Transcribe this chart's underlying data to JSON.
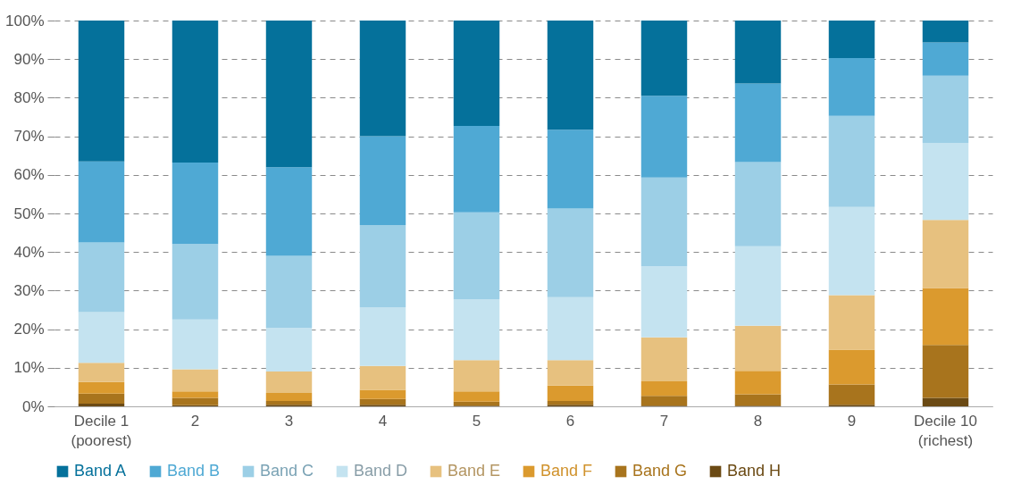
{
  "chart_data": {
    "type": "bar",
    "stacked": true,
    "categories": [
      "Decile 1 (poorest)",
      "2",
      "3",
      "4",
      "5",
      "6",
      "7",
      "8",
      "9",
      "Decile 10 (richest)"
    ],
    "series": [
      {
        "name": "Band H",
        "color": "#6b4a14",
        "values": [
          0.7,
          0.3,
          0.4,
          0.4,
          0.2,
          0.4,
          0.2,
          0.2,
          0.4,
          2.2
        ]
      },
      {
        "name": "Band G",
        "color": "#a8741d",
        "values": [
          2.6,
          1.9,
          1.0,
          1.5,
          1.0,
          1.0,
          2.5,
          2.9,
          5.3,
          13.7
        ]
      },
      {
        "name": "Band F",
        "color": "#db9a2e",
        "values": [
          3.0,
          1.7,
          2.1,
          2.4,
          2.7,
          4.0,
          3.8,
          6.1,
          9.0,
          14.8
        ]
      },
      {
        "name": "Band E",
        "color": "#e7c17f",
        "values": [
          5.0,
          5.7,
          5.5,
          6.2,
          8.1,
          6.6,
          11.4,
          11.7,
          14.1,
          17.6
        ]
      },
      {
        "name": "Band D",
        "color": "#c4e3f0",
        "values": [
          13.1,
          12.9,
          11.3,
          15.2,
          15.8,
          16.3,
          18.4,
          20.6,
          22.9,
          20.0
        ]
      },
      {
        "name": "Band C",
        "color": "#9ccfe6",
        "values": [
          18.1,
          19.6,
          18.7,
          21.3,
          22.5,
          23.0,
          23.0,
          21.8,
          23.6,
          17.4
        ]
      },
      {
        "name": "Band B",
        "color": "#4fa9d4",
        "values": [
          21.0,
          21.1,
          23.0,
          23.0,
          22.4,
          20.4,
          21.2,
          20.4,
          15.0,
          8.6
        ]
      },
      {
        "name": "Band A",
        "color": "#05719b",
        "values": [
          36.5,
          36.8,
          38.0,
          30.0,
          27.3,
          28.3,
          19.5,
          16.3,
          9.7,
          5.7
        ]
      }
    ],
    "ylim": [
      0,
      100
    ],
    "yticks": [
      {
        "value": 0,
        "label": "0%"
      },
      {
        "value": 10,
        "label": "10%"
      },
      {
        "value": 20,
        "label": "20%"
      },
      {
        "value": 30,
        "label": "30%"
      },
      {
        "value": 40,
        "label": "40%"
      },
      {
        "value": 50,
        "label": "50%"
      },
      {
        "value": 60,
        "label": "60%"
      },
      {
        "value": 70,
        "label": "70%"
      },
      {
        "value": 80,
        "label": "80%"
      },
      {
        "value": 90,
        "label": "90%"
      },
      {
        "value": 100,
        "label": "100%"
      }
    ],
    "grid": "y",
    "legend": "bottom"
  }
}
